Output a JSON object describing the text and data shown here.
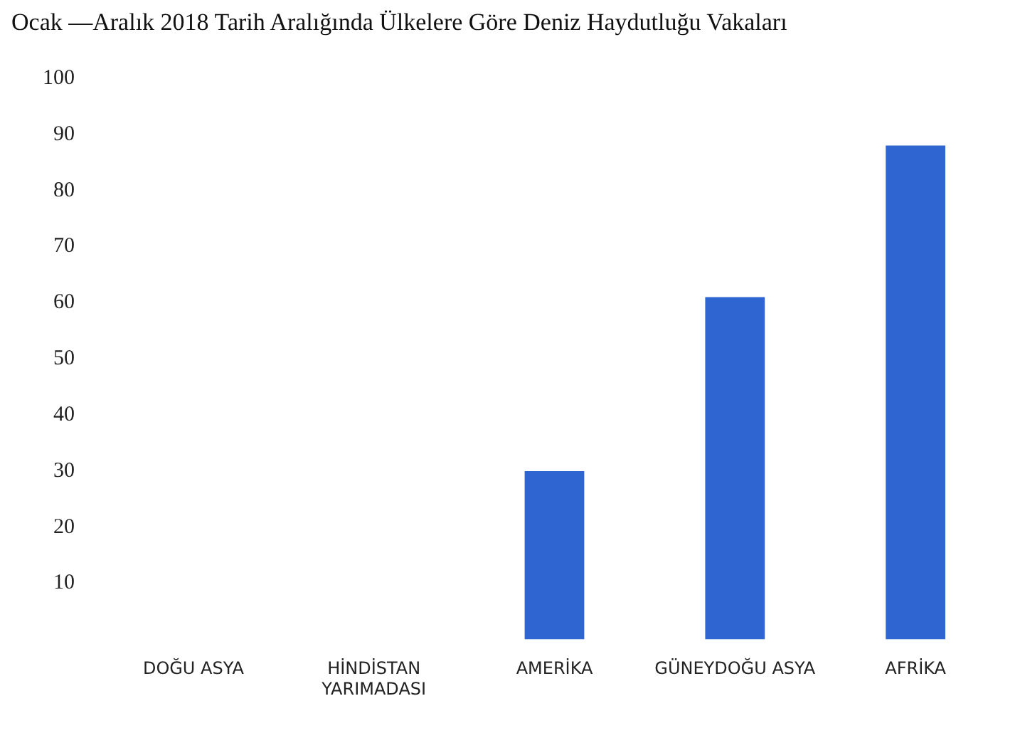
{
  "chart_data": {
    "type": "bar",
    "title": "Ocak —Aralık 2018 Tarih Aralığında Ülkelere Göre Deniz Haydutluğu Vakaları",
    "categories": [
      "DOĞU ASYA",
      [
        "HİNDİSTAN",
        "YARIMADASI"
      ],
      "AMERİKA",
      "GÜNEYDOĞU ASYA",
      "AFRİKA"
    ],
    "values": [
      0,
      0,
      30,
      61,
      88
    ],
    "color": "#2f65d0",
    "ylim": [
      0,
      100
    ],
    "yticks": [
      10,
      20,
      30,
      40,
      50,
      60,
      70,
      80,
      90,
      100
    ],
    "grid": false,
    "legend": false
  }
}
